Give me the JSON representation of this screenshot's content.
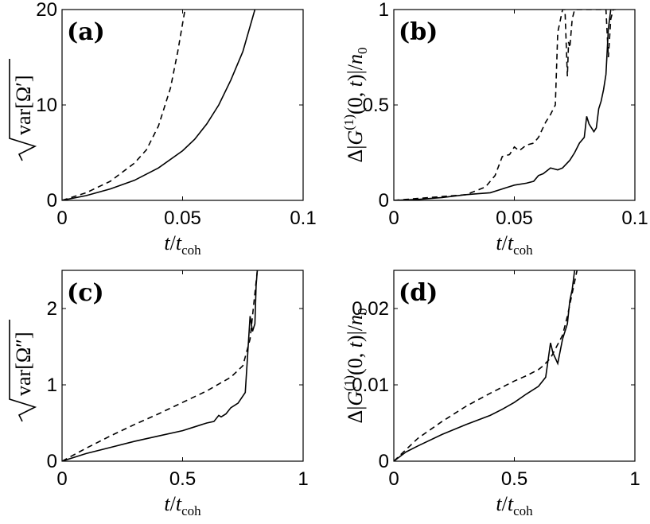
{
  "chart_data": [
    {
      "panel": "(a)",
      "type": "line",
      "xlabel": "t/t_coh",
      "ylabel": "sqrt(var[Ω′])",
      "xlim": [
        0,
        0.1
      ],
      "ylim": [
        0,
        20
      ],
      "xticks": [
        "0",
        "0.05",
        "0.1"
      ],
      "yticks": [
        "0",
        "10",
        "20"
      ],
      "grid": false,
      "series": [
        {
          "style": "dashed",
          "x": [
            0,
            0.01,
            0.02,
            0.03,
            0.035,
            0.04,
            0.045,
            0.048,
            0.051
          ],
          "y": [
            0,
            0.8,
            2.0,
            3.9,
            5.3,
            7.8,
            11.8,
            15.6,
            20
          ]
        },
        {
          "style": "solid",
          "x": [
            0,
            0.01,
            0.02,
            0.03,
            0.04,
            0.05,
            0.055,
            0.06,
            0.065,
            0.07,
            0.075,
            0.08
          ],
          "y": [
            0,
            0.5,
            1.2,
            2.1,
            3.4,
            5.2,
            6.4,
            8.0,
            10.0,
            12.6,
            15.6,
            20
          ]
        }
      ]
    },
    {
      "panel": "(b)",
      "type": "line",
      "xlabel": "t/t_coh",
      "ylabel": "Δ|G(1)(0,t)|/n0",
      "xlim": [
        0,
        0.1
      ],
      "ylim": [
        0,
        1
      ],
      "xticks": [
        "0",
        "0.05",
        "0.1"
      ],
      "yticks": [
        "0",
        "0.5",
        "1"
      ],
      "grid": false,
      "series": [
        {
          "style": "dashed",
          "x": [
            0,
            0.01,
            0.02,
            0.03,
            0.038,
            0.042,
            0.045,
            0.048,
            0.05,
            0.052,
            0.055,
            0.058,
            0.06,
            0.063,
            0.065,
            0.067,
            0.068,
            0.07,
            0.071,
            0.072,
            0.0725,
            0.073,
            0.074,
            0.075,
            0.076,
            0.088,
            0.089,
            0.09,
            0.091,
            0.092
          ],
          "y": [
            0,
            0.01,
            0.02,
            0.03,
            0.07,
            0.13,
            0.23,
            0.24,
            0.28,
            0.26,
            0.29,
            0.3,
            0.33,
            0.41,
            0.45,
            0.5,
            0.88,
            1.0,
            1.0,
            0.65,
            0.83,
            0.8,
            0.95,
            1.0,
            1.0,
            1.0,
            0.75,
            0.95,
            1.0,
            1.0
          ]
        },
        {
          "style": "solid",
          "x": [
            0,
            0.01,
            0.02,
            0.03,
            0.035,
            0.04,
            0.045,
            0.05,
            0.055,
            0.058,
            0.06,
            0.062,
            0.065,
            0.068,
            0.07,
            0.073,
            0.075,
            0.077,
            0.079,
            0.08,
            0.081,
            0.083,
            0.084,
            0.085,
            0.086,
            0.087,
            0.088,
            0.089,
            0.09
          ],
          "y": [
            0,
            0.005,
            0.015,
            0.03,
            0.035,
            0.04,
            0.06,
            0.08,
            0.09,
            0.1,
            0.13,
            0.14,
            0.17,
            0.16,
            0.17,
            0.21,
            0.25,
            0.3,
            0.33,
            0.44,
            0.4,
            0.36,
            0.38,
            0.48,
            0.52,
            0.58,
            0.66,
            0.9,
            1.0
          ]
        }
      ]
    },
    {
      "panel": "(c)",
      "type": "line",
      "xlabel": "t/t_coh",
      "ylabel": "sqrt(var[Ω″])",
      "xlim": [
        0,
        1
      ],
      "ylim": [
        0,
        2.5
      ],
      "xticks": [
        "0",
        "0.5",
        "1"
      ],
      "yticks": [
        "0",
        "1",
        "2"
      ],
      "grid": false,
      "series": [
        {
          "style": "dashed",
          "x": [
            0,
            0.1,
            0.2,
            0.3,
            0.4,
            0.5,
            0.6,
            0.7,
            0.75,
            0.78,
            0.8,
            0.81
          ],
          "y": [
            0,
            0.17,
            0.33,
            0.48,
            0.62,
            0.77,
            0.92,
            1.1,
            1.25,
            1.6,
            2.2,
            2.5
          ]
        },
        {
          "style": "solid",
          "x": [
            0,
            0.1,
            0.2,
            0.3,
            0.4,
            0.5,
            0.55,
            0.6,
            0.63,
            0.65,
            0.66,
            0.68,
            0.7,
            0.73,
            0.76,
            0.78,
            0.79,
            0.8,
            0.805,
            0.81
          ],
          "y": [
            0,
            0.1,
            0.18,
            0.26,
            0.33,
            0.4,
            0.45,
            0.5,
            0.52,
            0.6,
            0.58,
            0.62,
            0.7,
            0.76,
            0.9,
            1.9,
            1.7,
            1.8,
            2.3,
            2.5
          ]
        }
      ]
    },
    {
      "panel": "(d)",
      "type": "line",
      "xlabel": "t/t_coh",
      "ylabel": "Δ|G(1)(0,t)|/n0",
      "xlim": [
        0,
        1
      ],
      "ylim": [
        0,
        0.025
      ],
      "xticks": [
        "0",
        "0.5",
        "1"
      ],
      "yticks": [
        "0",
        "0.01",
        "0.02"
      ],
      "grid": false,
      "series": [
        {
          "style": "dashed",
          "x": [
            0,
            0.05,
            0.1,
            0.2,
            0.3,
            0.4,
            0.5,
            0.55,
            0.6,
            0.62,
            0.65,
            0.7,
            0.72,
            0.74,
            0.76
          ],
          "y": [
            0,
            0.0015,
            0.003,
            0.0052,
            0.0072,
            0.0089,
            0.0105,
            0.0112,
            0.012,
            0.0125,
            0.0135,
            0.0165,
            0.019,
            0.022,
            0.025
          ]
        },
        {
          "style": "solid",
          "x": [
            0,
            0.05,
            0.1,
            0.2,
            0.3,
            0.4,
            0.45,
            0.5,
            0.55,
            0.6,
            0.63,
            0.65,
            0.66,
            0.68,
            0.7,
            0.72,
            0.73,
            0.74,
            0.75
          ],
          "y": [
            0,
            0.0012,
            0.002,
            0.0035,
            0.0048,
            0.006,
            0.0068,
            0.0077,
            0.0088,
            0.0098,
            0.011,
            0.0155,
            0.0142,
            0.0128,
            0.016,
            0.018,
            0.021,
            0.0225,
            0.025
          ]
        }
      ]
    }
  ]
}
